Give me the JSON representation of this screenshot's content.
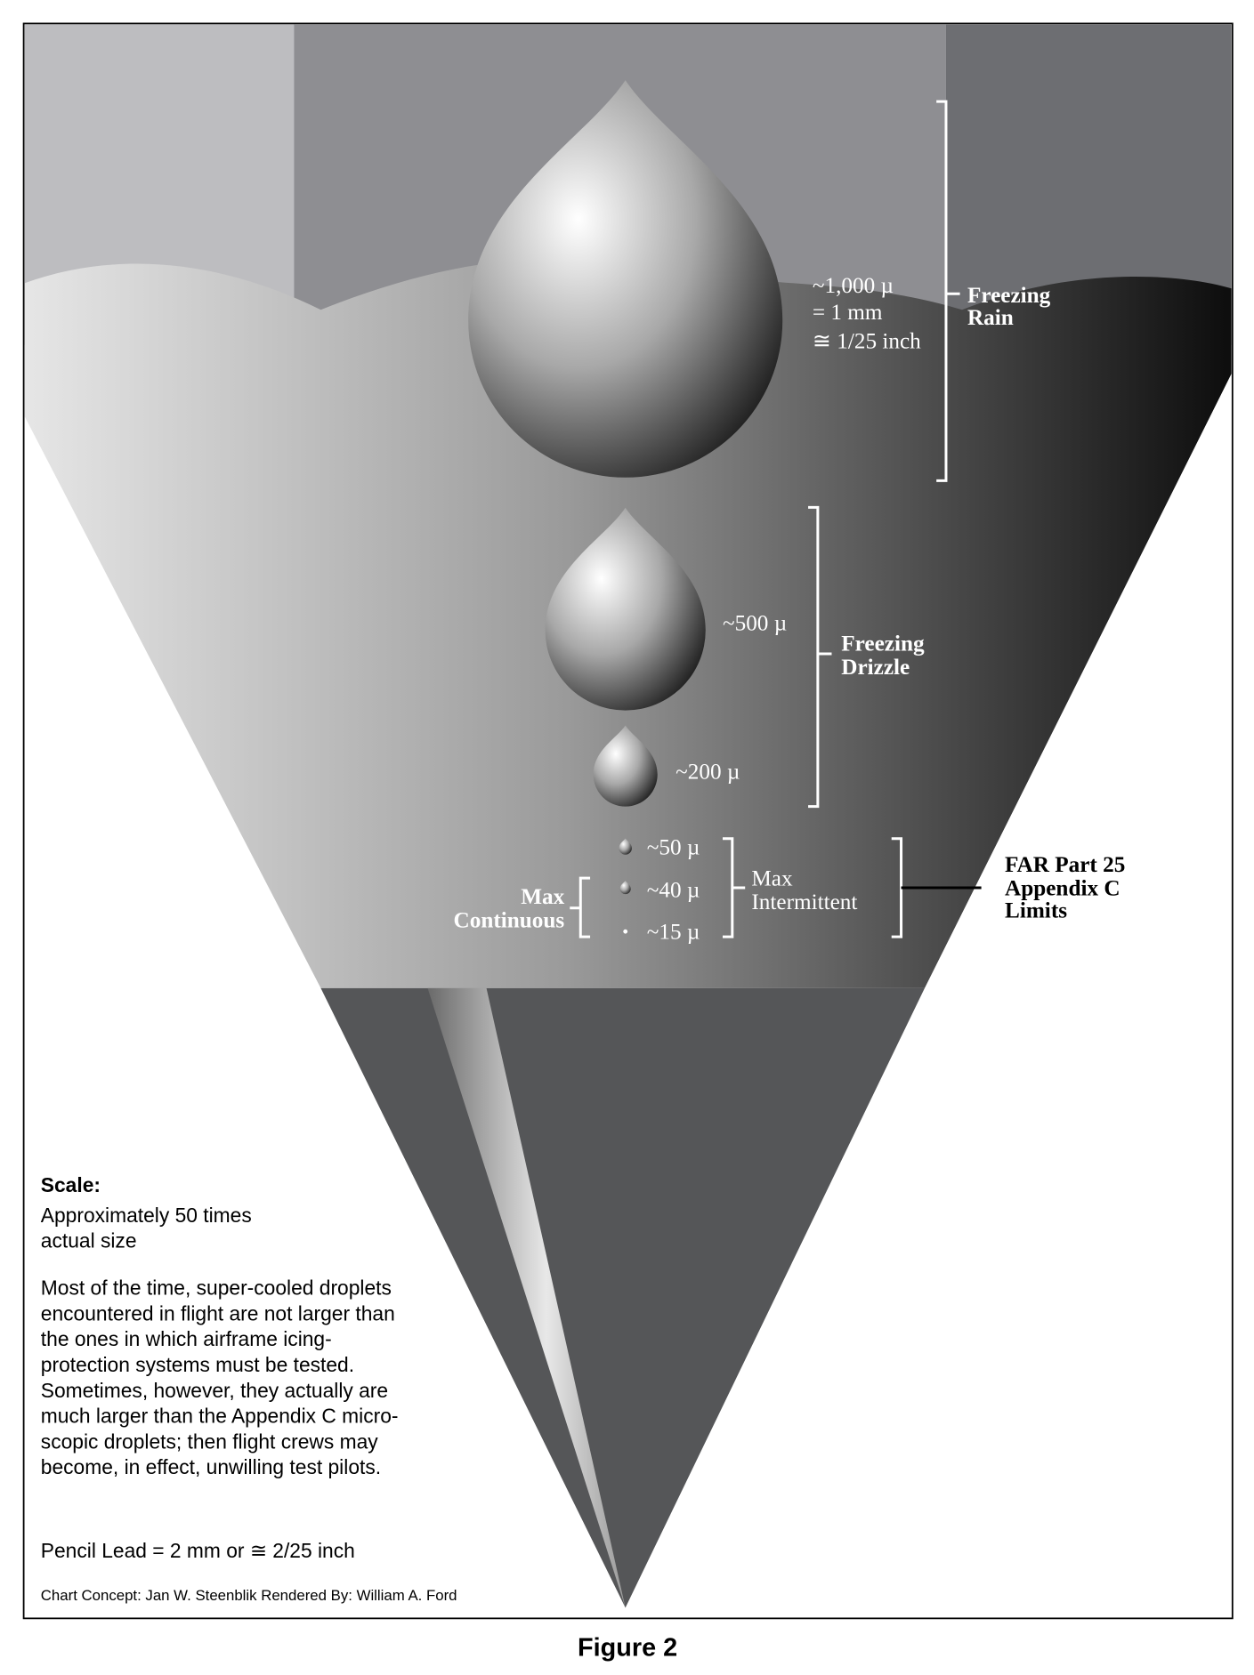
{
  "rain": {
    "size": [
      "~1,000 µ",
      "= 1 mm",
      "≅ 1/25 inch"
    ],
    "label": [
      "Freezing",
      "Rain"
    ]
  },
  "drizzle": {
    "sizes": [
      "~500 µ",
      "~200 µ"
    ],
    "label": [
      "Freezing",
      "Drizzle"
    ]
  },
  "appendix_c": {
    "sizes": [
      "~50 µ",
      "~40 µ",
      "~15 µ"
    ],
    "intermittent": [
      "Max",
      "Intermittent"
    ],
    "continuous": [
      "Max",
      "Continuous"
    ],
    "limits": [
      "FAR Part 25",
      "Appendix C",
      "Limits"
    ]
  },
  "notes": {
    "scale_title": "Scale:",
    "scale": [
      "Approximately 50 times",
      "actual size"
    ],
    "paragraph": [
      "Most of the time, super-cooled droplets",
      "encountered in flight are not larger than",
      "the ones in which airframe icing-",
      "protection systems must be tested.",
      "Sometimes, however, they actually are",
      "much larger than the Appendix C micro-",
      "scopic droplets; then flight crews may",
      "become, in effect, unwilling test pilots."
    ],
    "pencil": "Pencil Lead = 2 mm or ≅ 2/25 inch",
    "credits": "Chart Concept: Jan W. Steenblik Rendered By: William A. Ford"
  },
  "caption": "Figure 2"
}
